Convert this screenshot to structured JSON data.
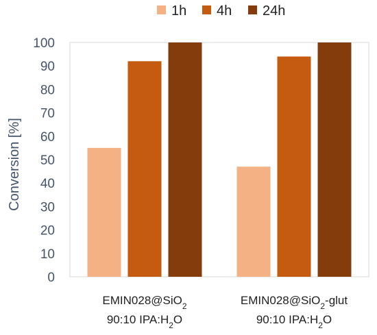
{
  "chart_data": {
    "type": "bar",
    "categories": [
      {
        "line1": {
          "prefix": "EMIN028@SiO",
          "sub": "2",
          "suffix": ""
        },
        "line2": {
          "prefix": "90:10 IPA:H",
          "sub": "2",
          "suffix": "O"
        }
      },
      {
        "line1": {
          "prefix": "EMIN028@SiO",
          "sub": "2",
          "suffix": "-glut"
        },
        "line2": {
          "prefix": "90:10 IPA:H",
          "sub": "2",
          "suffix": "O"
        }
      }
    ],
    "series": [
      {
        "name": "1h",
        "color": "#f4b183",
        "values": [
          55,
          47
        ]
      },
      {
        "name": "4h",
        "color": "#c55a11",
        "values": [
          92,
          94
        ]
      },
      {
        "name": "24h",
        "color": "#843c0c",
        "values": [
          100,
          100
        ]
      }
    ],
    "ylabel": "Conversion [%]",
    "ylim": [
      0,
      100
    ],
    "yticks": [
      0,
      10,
      20,
      30,
      40,
      50,
      60,
      70,
      80,
      90,
      100
    ],
    "grid": false,
    "legend_position": "top-center"
  }
}
